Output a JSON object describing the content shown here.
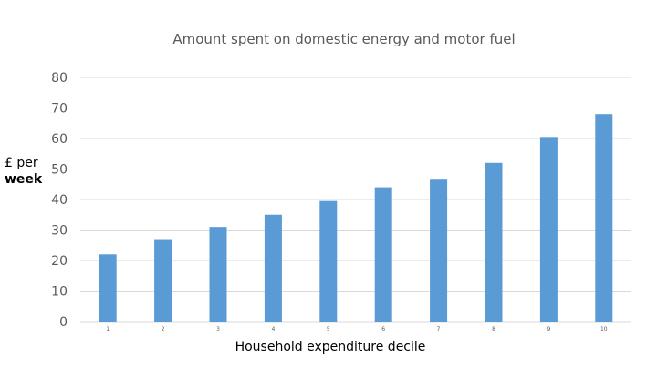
{
  "chart_data": {
    "type": "bar",
    "title": "Amount spent on domestic energy and motor fuel",
    "xlabel": "Household expenditure decile",
    "ylabel": [
      "£ per",
      "week"
    ],
    "categories": [
      "1",
      "2",
      "3",
      "4",
      "5",
      "6",
      "7",
      "8",
      "9",
      "10"
    ],
    "values": [
      22,
      27,
      31,
      35,
      39.5,
      44,
      46.5,
      52,
      60.5,
      68
    ],
    "ylim": [
      0,
      80
    ],
    "yticks": [
      0,
      10,
      20,
      30,
      40,
      50,
      60,
      70,
      80
    ],
    "grid": true,
    "legend": "none",
    "colors": {
      "bar": "#5b9bd5",
      "grid": "#d9d9d9",
      "tick_text": "#595959"
    }
  }
}
